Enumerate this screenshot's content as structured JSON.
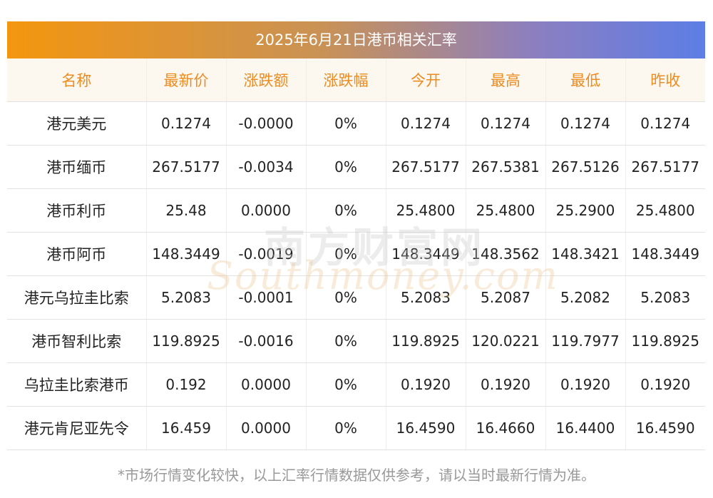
{
  "title": "2025年6月21日港币相关汇率",
  "columns": [
    "名称",
    "最新价",
    "涨跌额",
    "涨跌幅",
    "今开",
    "最高",
    "最低",
    "昨收"
  ],
  "rows": [
    [
      "港元美元",
      "0.1274",
      "-0.0000",
      "0%",
      "0.1274",
      "0.1274",
      "0.1274",
      "0.1274"
    ],
    [
      "港币缅币",
      "267.5177",
      "-0.0034",
      "0%",
      "267.5177",
      "267.5381",
      "267.5126",
      "267.5177"
    ],
    [
      "港币利币",
      "25.48",
      "0.0000",
      "0%",
      "25.4800",
      "25.4800",
      "25.2900",
      "25.4800"
    ],
    [
      "港币阿币",
      "148.3449",
      "-0.0019",
      "0%",
      "148.3449",
      "148.3562",
      "148.3421",
      "148.3449"
    ],
    [
      "港元乌拉圭比索",
      "5.2083",
      "-0.0001",
      "0%",
      "5.2083",
      "5.2087",
      "5.2082",
      "5.2083"
    ],
    [
      "港币智利比索",
      "119.8925",
      "-0.0016",
      "0%",
      "119.8925",
      "120.0221",
      "119.7977",
      "119.8925"
    ],
    [
      "乌拉圭比索港币",
      "0.192",
      "0.0000",
      "0%",
      "0.1920",
      "0.1920",
      "0.1920",
      "0.1920"
    ],
    [
      "港元肯尼亚先令",
      "16.459",
      "0.0000",
      "0%",
      "16.4590",
      "16.4660",
      "16.4400",
      "16.4590"
    ]
  ],
  "watermark": {
    "cn": "南方财富网",
    "en": "Southmoney.com"
  },
  "footnote": "*市场行情变化较快，以上汇率行情数据仅供参考，请以当时最新行情为准。",
  "colors": {
    "header_text": "#ed8b20",
    "header_bg": "#fdf8ef",
    "gradient_start": "#f4960f",
    "gradient_end": "#5c7ee6"
  }
}
